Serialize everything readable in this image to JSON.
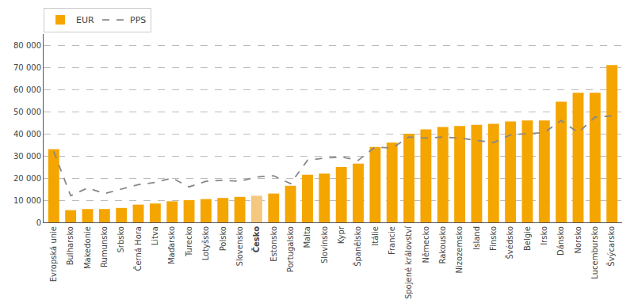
{
  "chart_data": {
    "type": "bar",
    "categories": [
      "Evropská unie",
      "Bulharsko",
      "Makedonie",
      "Rumunsko",
      "Srbsko",
      "Černá Hora",
      "Litva",
      "Maďarsko",
      "Turecko",
      "Lotyšsko",
      "Polsko",
      "Slovensko",
      "Česko",
      "Estonsko",
      "Portugalsko",
      "Malta",
      "Slovinsko",
      "Kypr",
      "Španělsko",
      "Itálie",
      "Francie",
      "Spojené království",
      "Německo",
      "Rakousko",
      "Nizozemsko",
      "Island",
      "Finsko",
      "Švédsko",
      "Belgie",
      "Irsko",
      "Dánsko",
      "Norsko",
      "Lucembursko",
      "Švýcarsko"
    ],
    "series": [
      {
        "name": "EUR",
        "type": "bar",
        "color": "#F5A500",
        "colors": [
          "#F5A500",
          "#F5A500",
          "#F5A500",
          "#F5A500",
          "#F5A500",
          "#F5A500",
          "#F5A500",
          "#F5A500",
          "#F5A500",
          "#F5A500",
          "#F5A500",
          "#F5A500",
          "#F5C880",
          "#F5A500",
          "#F5A500",
          "#F5A500",
          "#F5A500",
          "#F5A500",
          "#F5A500",
          "#F5A500",
          "#F5A500",
          "#F5A500",
          "#F5A500",
          "#F5A500",
          "#F5A500",
          "#F5A500",
          "#F5A500",
          "#F5A500",
          "#F5A500",
          "#F5A500",
          "#F5A500",
          "#F5A500",
          "#F5A500",
          "#F5A500"
        ],
        "values": [
          33000,
          5500,
          6000,
          6000,
          6500,
          8000,
          8500,
          9500,
          10000,
          10500,
          11000,
          11500,
          12000,
          13000,
          16500,
          21500,
          22000,
          25000,
          26500,
          34000,
          36000,
          40000,
          42000,
          43000,
          43500,
          44000,
          44500,
          45500,
          46000,
          46000,
          54500,
          58500,
          58500,
          71000
        ]
      },
      {
        "name": "PPS",
        "type": "line",
        "color": "#888888",
        "line_style": "dashed",
        "values": [
          32000,
          12000,
          15500,
          13000,
          15000,
          17000,
          18000,
          20000,
          16000,
          18500,
          19000,
          18500,
          20500,
          21000,
          17500,
          28000,
          29000,
          29500,
          28000,
          34000,
          33500,
          38500,
          38000,
          38500,
          38000,
          37000,
          36000,
          39500,
          40000,
          40500,
          46000,
          40500,
          47500,
          48000
        ]
      }
    ],
    "ylim": [
      0,
      85000
    ],
    "yticks": [
      0,
      {
        "value": 10000,
        "label": "10 000"
      },
      {
        "value": 20000,
        "label": "20 000"
      },
      {
        "value": 30000,
        "label": "30 000"
      },
      {
        "value": 40000,
        "label": "40 000"
      },
      {
        "value": 50000,
        "label": "50 000"
      },
      {
        "value": 60000,
        "label": "60 000"
      },
      {
        "value": 70000,
        "label": "70 000"
      },
      {
        "value": 80000,
        "label": "80 000"
      }
    ],
    "grid": true,
    "legend": "upper left"
  }
}
